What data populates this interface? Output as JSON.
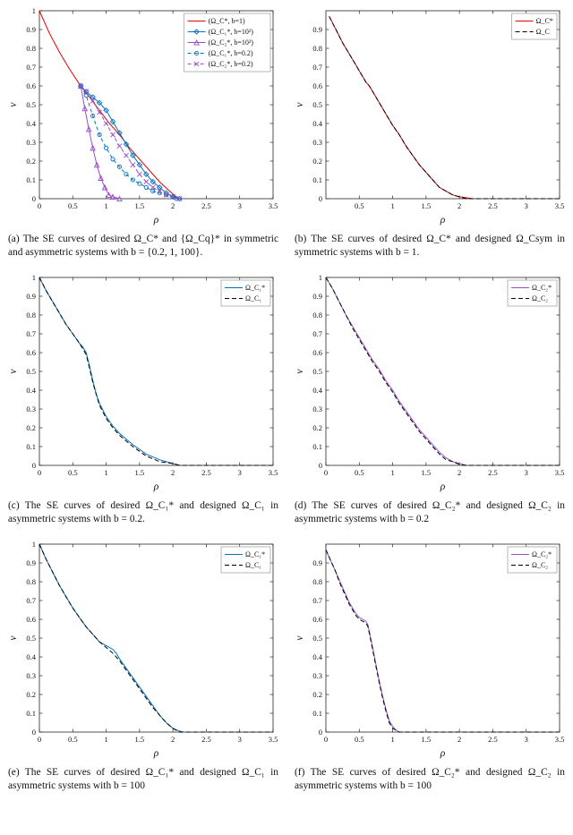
{
  "captions": [
    "(a) The SE curves of desired Ω_C* and {Ω_Cq}* in symmetric and asymmetric systems with b = {0.2, 1, 100}.",
    "(b) The SE curves of desired Ω_C* and designed Ω_Csym in symmetric systems with b = 1.",
    "(c) The SE curves of desired Ω_C₁* and designed Ω_C₁ in asymmetric systems with b = 0.2.",
    "(d) The SE curves of desired Ω_C₂* and designed Ω_C₂ in asymmetric systems with b = 0.2",
    "(e) The SE curves of desired Ω_C₁* and designed Ω_C₁ in asymmetric systems with b = 100",
    "(f) The SE curves of desired Ω_C₂* and designed Ω_C₂ in asymmetric systems with b = 100"
  ],
  "colors": {
    "red": "#e60000",
    "blue": "#0072bd",
    "purple": "#9b4dca",
    "black": "#000000"
  },
  "chart_data": [
    {
      "id": "a",
      "type": "line",
      "xlabel": "ρ",
      "ylabel": "ν",
      "xlim": [
        0,
        3.5
      ],
      "ylim": [
        0,
        1
      ],
      "xticks": [
        0,
        0.5,
        1,
        1.5,
        2,
        2.5,
        3,
        3.5
      ],
      "yticks": [
        0,
        0.1,
        0.2,
        0.3,
        0.4,
        0.5,
        0.6,
        0.7,
        0.8,
        0.9,
        1
      ],
      "legend_position": "top-right",
      "series": [
        {
          "name": "(Ω_C*, b=1)",
          "color": "#e60000",
          "dash": "",
          "marker": "",
          "x": [
            0,
            0.15,
            0.3,
            0.45,
            0.6,
            0.75,
            0.9,
            1.05,
            1.2,
            1.35,
            1.5,
            1.65,
            1.8,
            1.95,
            2.05,
            2.1
          ],
          "y": [
            1,
            0.88,
            0.78,
            0.69,
            0.61,
            0.54,
            0.47,
            0.4,
            0.34,
            0.27,
            0.21,
            0.15,
            0.09,
            0.04,
            0.01,
            0
          ]
        },
        {
          "name": "(Ω_C₁*, b=10²)",
          "color": "#0072bd",
          "dash": "",
          "marker": "diamond",
          "x": [
            0.62,
            0.7,
            0.8,
            0.9,
            1.0,
            1.1,
            1.2,
            1.3,
            1.4,
            1.5,
            1.6,
            1.7,
            1.8,
            1.9,
            2.0,
            2.1
          ],
          "y": [
            0.6,
            0.57,
            0.54,
            0.51,
            0.47,
            0.41,
            0.35,
            0.29,
            0.23,
            0.18,
            0.13,
            0.09,
            0.06,
            0.03,
            0.01,
            0
          ]
        },
        {
          "name": "(Ω_C₂*, b=10²)",
          "color": "#9b4dca",
          "dash": "",
          "marker": "triangle",
          "x": [
            0.62,
            0.68,
            0.74,
            0.8,
            0.86,
            0.92,
            0.98,
            1.04,
            1.1,
            1.2
          ],
          "y": [
            0.6,
            0.48,
            0.37,
            0.27,
            0.18,
            0.11,
            0.06,
            0.02,
            0.01,
            0
          ]
        },
        {
          "name": "(Ω_C₁*, b=0.2)",
          "color": "#0072bd",
          "dash": "4,3",
          "marker": "circle",
          "x": [
            0.62,
            0.7,
            0.8,
            0.9,
            1.0,
            1.1,
            1.2,
            1.3,
            1.4,
            1.5,
            1.6,
            1.7,
            1.8,
            1.9,
            2.0,
            2.05
          ],
          "y": [
            0.6,
            0.55,
            0.44,
            0.34,
            0.27,
            0.21,
            0.17,
            0.13,
            0.1,
            0.08,
            0.06,
            0.04,
            0.03,
            0.02,
            0.01,
            0
          ]
        },
        {
          "name": "(Ω_C₂*, b=0.2)",
          "color": "#9b4dca",
          "dash": "4,3",
          "marker": "x",
          "x": [
            0.62,
            0.7,
            0.8,
            0.9,
            1.0,
            1.1,
            1.2,
            1.3,
            1.4,
            1.5,
            1.6,
            1.7,
            1.8,
            1.9,
            2.0,
            2.1
          ],
          "y": [
            0.6,
            0.57,
            0.52,
            0.46,
            0.4,
            0.34,
            0.28,
            0.23,
            0.18,
            0.13,
            0.09,
            0.06,
            0.04,
            0.02,
            0.01,
            0
          ]
        }
      ]
    },
    {
      "id": "b",
      "type": "line",
      "xlabel": "ρ",
      "ylabel": "ν",
      "xlim": [
        0,
        3.5
      ],
      "ylim": [
        0,
        1
      ],
      "xticks": [
        0.5,
        1,
        1.5,
        2,
        2.5,
        3,
        3.5
      ],
      "yticks": [
        0,
        0.1,
        0.2,
        0.3,
        0.4,
        0.5,
        0.6,
        0.7,
        0.8,
        0.9
      ],
      "legend_position": "top-right",
      "series": [
        {
          "name": "Ω_C*",
          "color": "#e60000",
          "dash": "",
          "marker": "",
          "x": [
            0.05,
            0.15,
            0.25,
            0.35,
            0.45,
            0.55,
            0.6,
            0.65,
            0.7,
            0.8,
            0.9,
            1.0,
            1.1,
            1.2,
            1.3,
            1.4,
            1.5,
            1.6,
            1.7,
            1.8,
            1.9,
            2.0,
            2.1,
            2.2
          ],
          "y": [
            0.97,
            0.9,
            0.83,
            0.77,
            0.71,
            0.65,
            0.62,
            0.6,
            0.57,
            0.51,
            0.45,
            0.39,
            0.34,
            0.28,
            0.23,
            0.18,
            0.14,
            0.1,
            0.06,
            0.04,
            0.02,
            0.01,
            0.005,
            0
          ]
        },
        {
          "name": "Ω_C",
          "color": "#000000",
          "dash": "5,3",
          "marker": "",
          "x": [
            0.05,
            0.15,
            0.25,
            0.35,
            0.45,
            0.55,
            0.6,
            0.65,
            0.7,
            0.8,
            0.9,
            1.0,
            1.1,
            1.2,
            1.3,
            1.4,
            1.5,
            1.6,
            1.7,
            1.8,
            1.9,
            2.0,
            2.1,
            3.5
          ],
          "y": [
            0.97,
            0.9,
            0.83,
            0.77,
            0.71,
            0.65,
            0.62,
            0.6,
            0.57,
            0.51,
            0.45,
            0.39,
            0.34,
            0.28,
            0.23,
            0.18,
            0.14,
            0.1,
            0.06,
            0.04,
            0.02,
            0.01,
            0,
            0
          ]
        }
      ]
    },
    {
      "id": "c",
      "type": "line",
      "xlabel": "ρ",
      "ylabel": "ν",
      "xlim": [
        0,
        3.5
      ],
      "ylim": [
        0,
        1
      ],
      "xticks": [
        0,
        0.5,
        1,
        1.5,
        2,
        2.5,
        3,
        3.5
      ],
      "yticks": [
        0,
        0.1,
        0.2,
        0.3,
        0.4,
        0.5,
        0.6,
        0.7,
        0.8,
        0.9,
        1
      ],
      "legend_position": "top-right",
      "series": [
        {
          "name": "Ω_C₁*",
          "color": "#0072bd",
          "dash": "",
          "marker": "",
          "x": [
            0,
            0.1,
            0.2,
            0.3,
            0.4,
            0.5,
            0.6,
            0.65,
            0.7,
            0.75,
            0.8,
            0.85,
            0.9,
            1.0,
            1.1,
            1.2,
            1.3,
            1.4,
            1.6,
            1.8,
            2.0,
            2.1
          ],
          "y": [
            1,
            0.93,
            0.87,
            0.81,
            0.75,
            0.7,
            0.65,
            0.63,
            0.6,
            0.53,
            0.45,
            0.38,
            0.33,
            0.26,
            0.21,
            0.17,
            0.14,
            0.11,
            0.06,
            0.03,
            0.01,
            0
          ]
        },
        {
          "name": "Ω_C₁",
          "color": "#000000",
          "dash": "5,3",
          "marker": "",
          "x": [
            0,
            0.1,
            0.2,
            0.3,
            0.4,
            0.5,
            0.6,
            0.65,
            0.7,
            0.75,
            0.8,
            0.85,
            0.9,
            1.0,
            1.1,
            1.2,
            1.3,
            1.4,
            1.6,
            1.8,
            2.0,
            2.1,
            3.5
          ],
          "y": [
            1,
            0.93,
            0.87,
            0.81,
            0.75,
            0.7,
            0.65,
            0.62,
            0.59,
            0.52,
            0.44,
            0.38,
            0.32,
            0.25,
            0.2,
            0.16,
            0.13,
            0.1,
            0.05,
            0.02,
            0.01,
            0,
            0
          ]
        }
      ]
    },
    {
      "id": "d",
      "type": "line",
      "xlabel": "ρ",
      "ylabel": "ν",
      "xlim": [
        0,
        3.5
      ],
      "ylim": [
        0,
        1
      ],
      "xticks": [
        0,
        0.5,
        1,
        1.5,
        2,
        2.5,
        3,
        3.5
      ],
      "yticks": [
        0,
        0.1,
        0.2,
        0.3,
        0.4,
        0.5,
        0.6,
        0.7,
        0.8,
        0.9,
        1
      ],
      "legend_position": "top-right",
      "series": [
        {
          "name": "Ω_C₂*",
          "color": "#9b4dca",
          "dash": "",
          "marker": "",
          "x": [
            0,
            0.1,
            0.2,
            0.3,
            0.4,
            0.5,
            0.6,
            0.7,
            0.8,
            0.9,
            1.0,
            1.1,
            1.2,
            1.3,
            1.4,
            1.5,
            1.6,
            1.7,
            1.8,
            1.9,
            2.0,
            2.1
          ],
          "y": [
            1,
            0.94,
            0.87,
            0.8,
            0.74,
            0.68,
            0.62,
            0.56,
            0.51,
            0.45,
            0.4,
            0.34,
            0.29,
            0.24,
            0.19,
            0.15,
            0.11,
            0.07,
            0.04,
            0.02,
            0.01,
            0
          ]
        },
        {
          "name": "Ω_C₂",
          "color": "#000000",
          "dash": "5,3",
          "marker": "",
          "x": [
            0,
            0.1,
            0.2,
            0.3,
            0.4,
            0.5,
            0.6,
            0.7,
            0.8,
            0.9,
            1.0,
            1.1,
            1.2,
            1.3,
            1.4,
            1.5,
            1.6,
            1.7,
            1.8,
            1.9,
            2.0,
            2.1,
            3.5
          ],
          "y": [
            1,
            0.94,
            0.87,
            0.8,
            0.73,
            0.67,
            0.61,
            0.55,
            0.5,
            0.44,
            0.39,
            0.33,
            0.28,
            0.23,
            0.18,
            0.14,
            0.1,
            0.06,
            0.03,
            0.02,
            0.005,
            0,
            0
          ]
        }
      ]
    },
    {
      "id": "e",
      "type": "line",
      "xlabel": "ρ",
      "ylabel": "ν",
      "xlim": [
        0,
        3.5
      ],
      "ylim": [
        0,
        1
      ],
      "xticks": [
        0,
        0.5,
        1,
        1.5,
        2,
        2.5,
        3,
        3.5
      ],
      "yticks": [
        0,
        0.1,
        0.2,
        0.3,
        0.4,
        0.5,
        0.6,
        0.7,
        0.8,
        0.9,
        1
      ],
      "legend_position": "top-right",
      "series": [
        {
          "name": "Ω_C₁*",
          "color": "#0072bd",
          "dash": "",
          "marker": "",
          "x": [
            0,
            0.1,
            0.2,
            0.3,
            0.4,
            0.5,
            0.6,
            0.7,
            0.8,
            0.9,
            1.0,
            1.1,
            1.15,
            1.2,
            1.3,
            1.4,
            1.5,
            1.6,
            1.7,
            1.8,
            1.9,
            2.0,
            2.1,
            2.15
          ],
          "y": [
            1,
            0.92,
            0.85,
            0.78,
            0.72,
            0.66,
            0.61,
            0.56,
            0.52,
            0.48,
            0.46,
            0.44,
            0.42,
            0.39,
            0.34,
            0.29,
            0.24,
            0.19,
            0.14,
            0.09,
            0.05,
            0.02,
            0.005,
            0
          ]
        },
        {
          "name": "Ω_C₁",
          "color": "#000000",
          "dash": "5,3",
          "marker": "",
          "x": [
            0,
            0.1,
            0.2,
            0.3,
            0.4,
            0.5,
            0.6,
            0.7,
            0.8,
            0.9,
            1.0,
            1.1,
            1.2,
            1.3,
            1.4,
            1.5,
            1.6,
            1.7,
            1.8,
            1.9,
            2.0,
            2.1,
            3.5
          ],
          "y": [
            1,
            0.92,
            0.85,
            0.78,
            0.72,
            0.66,
            0.61,
            0.56,
            0.52,
            0.48,
            0.45,
            0.42,
            0.38,
            0.33,
            0.28,
            0.23,
            0.18,
            0.13,
            0.09,
            0.05,
            0.02,
            0,
            0
          ]
        }
      ]
    },
    {
      "id": "f",
      "type": "line",
      "xlabel": "ρ",
      "ylabel": "ν",
      "xlim": [
        0,
        3.5
      ],
      "ylim": [
        0,
        1
      ],
      "xticks": [
        0,
        0.5,
        1,
        1.5,
        2,
        2.5,
        3,
        3.5
      ],
      "yticks": [
        0,
        0.1,
        0.2,
        0.3,
        0.4,
        0.5,
        0.6,
        0.7,
        0.8,
        0.9
      ],
      "legend_position": "top-right",
      "series": [
        {
          "name": "Ω_C₂*",
          "color": "#9b4dca",
          "dash": "",
          "marker": "",
          "x": [
            0,
            0.05,
            0.1,
            0.15,
            0.2,
            0.25,
            0.3,
            0.35,
            0.4,
            0.45,
            0.5,
            0.55,
            0.6,
            0.63,
            0.66,
            0.7,
            0.75,
            0.8,
            0.85,
            0.9,
            0.95,
            1.0,
            1.05,
            1.1
          ],
          "y": [
            0.97,
            0.93,
            0.89,
            0.85,
            0.81,
            0.77,
            0.73,
            0.69,
            0.66,
            0.63,
            0.61,
            0.6,
            0.59,
            0.57,
            0.52,
            0.45,
            0.36,
            0.27,
            0.19,
            0.12,
            0.06,
            0.03,
            0.01,
            0
          ]
        },
        {
          "name": "Ω_C₂",
          "color": "#000000",
          "dash": "5,3",
          "marker": "",
          "x": [
            0,
            0.05,
            0.1,
            0.15,
            0.2,
            0.25,
            0.3,
            0.35,
            0.4,
            0.45,
            0.5,
            0.55,
            0.6,
            0.63,
            0.66,
            0.7,
            0.75,
            0.8,
            0.85,
            0.9,
            0.95,
            1.0,
            1.1,
            3.5
          ],
          "y": [
            0.97,
            0.93,
            0.89,
            0.85,
            0.8,
            0.76,
            0.72,
            0.68,
            0.65,
            0.62,
            0.6,
            0.59,
            0.58,
            0.56,
            0.51,
            0.44,
            0.35,
            0.26,
            0.18,
            0.11,
            0.05,
            0.02,
            0,
            0
          ]
        }
      ]
    }
  ]
}
